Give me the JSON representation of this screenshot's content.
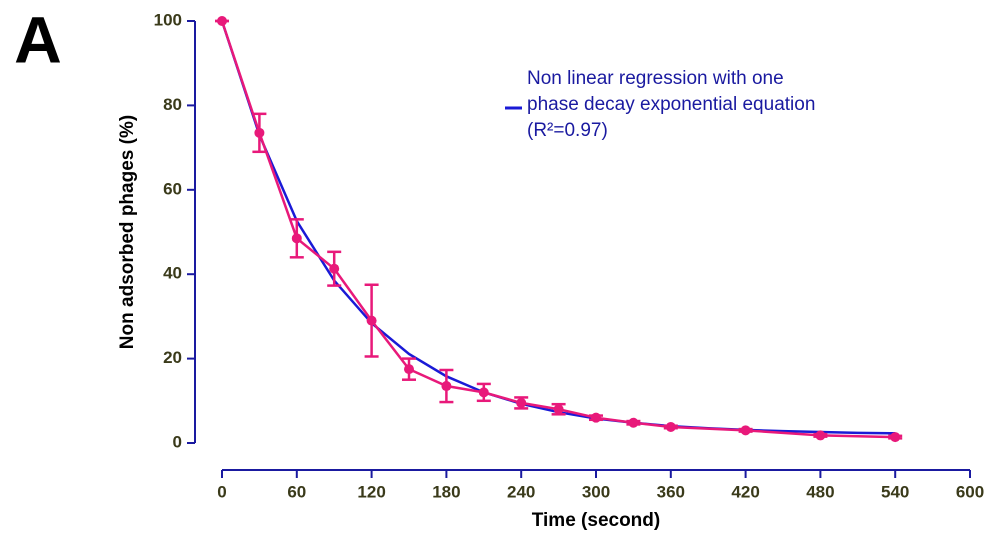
{
  "chart_data": {
    "type": "line",
    "panel_label": "A",
    "xlabel": "Time (second)",
    "ylabel": "Non adsorbed phages (%)",
    "xlim": [
      0,
      600
    ],
    "xticks": [
      0,
      60,
      120,
      180,
      240,
      300,
      360,
      420,
      480,
      540,
      600
    ],
    "ylim": [
      0,
      100
    ],
    "yticks": [
      0,
      20,
      40,
      60,
      80,
      100
    ],
    "series": [
      {
        "name": "Non linear regression with one phase decay exponential equation (R²=0.97)",
        "color": "#1a1ad6",
        "x": [
          0,
          30,
          60,
          90,
          120,
          150,
          180,
          210,
          240,
          270,
          300,
          330,
          360,
          390,
          420,
          450,
          480,
          510,
          540
        ],
        "values": [
          100,
          73,
          52.6,
          38.5,
          28.4,
          21.1,
          15.8,
          12,
          9.3,
          7.3,
          5.8,
          4.8,
          4,
          3.5,
          3.1,
          2.8,
          2.6,
          2.4,
          2.3
        ]
      },
      {
        "color": "#e8197a",
        "x": [
          0,
          30,
          60,
          90,
          120,
          150,
          180,
          210,
          240,
          270,
          300,
          330,
          360,
          420,
          480,
          540
        ],
        "values": [
          100,
          73.5,
          48.5,
          41.3,
          29,
          17.5,
          13.5,
          12,
          9.5,
          8,
          6,
          4.8,
          3.8,
          3,
          1.8,
          1.4
        ],
        "errors": [
          0,
          4.5,
          4.5,
          4,
          8.5,
          2.5,
          3.8,
          2,
          1.3,
          1.2,
          0.5,
          0.4,
          0.3,
          0.3,
          0.3,
          0.3
        ]
      }
    ]
  }
}
